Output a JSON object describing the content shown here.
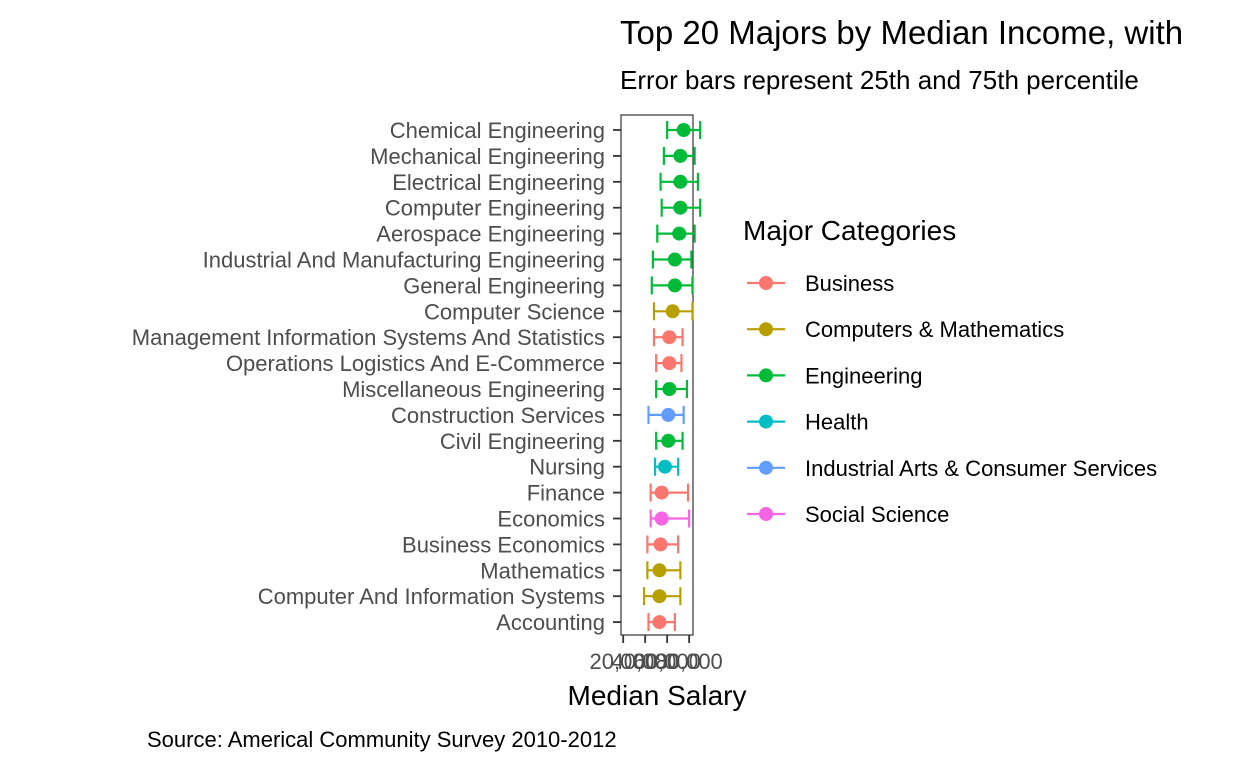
{
  "chart_data": {
    "type": "scatter",
    "title": "Top 20 Majors by Median Income, with",
    "subtitle": "Error bars represent 25th and 75th percentile",
    "xlabel": "Median Salary",
    "ylabel": "",
    "caption": "Source: Americal Community Survey 2010-2012",
    "x_ticks": [
      20000,
      40000,
      60000,
      80000
    ],
    "x_tick_labels": [
      "20,000",
      "40,000",
      "60,000",
      "80,000"
    ],
    "xlim": [
      18000,
      83500
    ],
    "legend": {
      "title": "Major Categories",
      "placement": "right",
      "entries": [
        {
          "name": "Business",
          "color": "#F8766D"
        },
        {
          "name": "Computers & Mathematics",
          "color": "#B79F00"
        },
        {
          "name": "Engineering",
          "color": "#00BA38"
        },
        {
          "name": "Health",
          "color": "#00BFC4"
        },
        {
          "name": "Industrial Arts & Consumer Services",
          "color": "#619CFF"
        },
        {
          "name": "Social Science",
          "color": "#F564E3"
        }
      ]
    },
    "points": [
      {
        "major": "Chemical Engineering",
        "category": "Engineering",
        "median": 75000,
        "p25": 60000,
        "p75": 90000
      },
      {
        "major": "Mechanical Engineering",
        "category": "Engineering",
        "median": 72000,
        "p25": 57000,
        "p75": 85000
      },
      {
        "major": "Electrical Engineering",
        "category": "Engineering",
        "median": 72000,
        "p25": 54000,
        "p75": 88000
      },
      {
        "major": "Computer Engineering",
        "category": "Engineering",
        "median": 72000,
        "p25": 55000,
        "p75": 90000
      },
      {
        "major": "Aerospace Engineering",
        "category": "Engineering",
        "median": 71000,
        "p25": 51000,
        "p75": 85000
      },
      {
        "major": "Industrial And Manufacturing Engineering",
        "category": "Engineering",
        "median": 67000,
        "p25": 47000,
        "p75": 82000
      },
      {
        "major": "General Engineering",
        "category": "Engineering",
        "median": 67000,
        "p25": 46000,
        "p75": 83000
      },
      {
        "major": "Computer Science",
        "category": "Computers & Mathematics",
        "median": 65000,
        "p25": 48000,
        "p75": 83000
      },
      {
        "major": "Management Information Systems And Statistics",
        "category": "Business",
        "median": 62000,
        "p25": 48000,
        "p75": 74000
      },
      {
        "major": "Operations Logistics And E-Commerce",
        "category": "Business",
        "median": 62000,
        "p25": 50000,
        "p75": 73000
      },
      {
        "major": "Miscellaneous Engineering",
        "category": "Engineering",
        "median": 62000,
        "p25": 50000,
        "p75": 78000
      },
      {
        "major": "Construction Services",
        "category": "Industrial Arts & Consumer Services",
        "median": 61000,
        "p25": 43000,
        "p75": 75000
      },
      {
        "major": "Civil Engineering",
        "category": "Engineering",
        "median": 61000,
        "p25": 50000,
        "p75": 74000
      },
      {
        "major": "Nursing",
        "category": "Health",
        "median": 58000,
        "p25": 49000,
        "p75": 70000
      },
      {
        "major": "Finance",
        "category": "Business",
        "median": 55000,
        "p25": 45000,
        "p75": 79000
      },
      {
        "major": "Economics",
        "category": "Social Science",
        "median": 55000,
        "p25": 45000,
        "p75": 80000
      },
      {
        "major": "Business Economics",
        "category": "Business",
        "median": 54000,
        "p25": 42000,
        "p75": 70000
      },
      {
        "major": "Mathematics",
        "category": "Computers & Mathematics",
        "median": 53000,
        "p25": 42000,
        "p75": 72000
      },
      {
        "major": "Computer And Information Systems",
        "category": "Computers & Mathematics",
        "median": 53000,
        "p25": 39000,
        "p75": 72000
      },
      {
        "major": "Accounting",
        "category": "Business",
        "median": 53000,
        "p25": 43000,
        "p75": 67000
      }
    ]
  }
}
